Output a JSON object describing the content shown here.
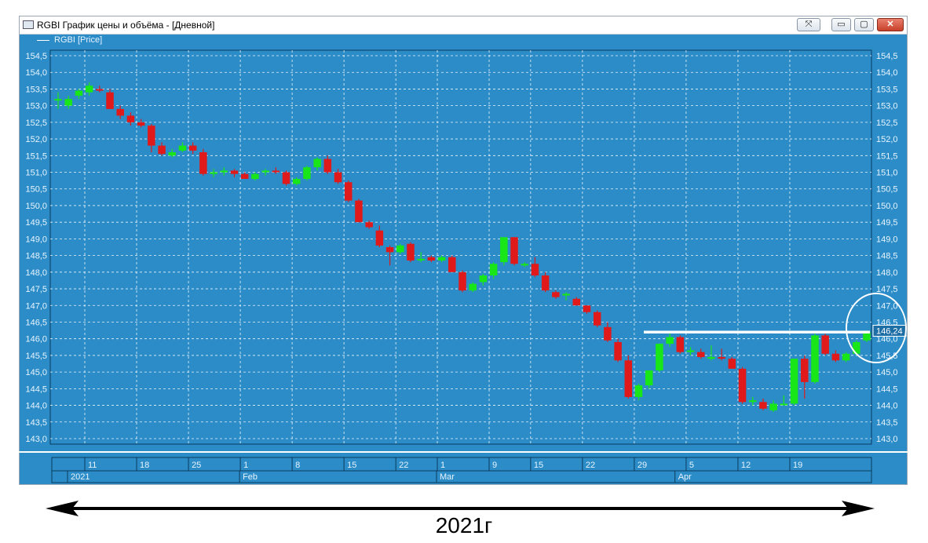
{
  "window": {
    "title": "RGBI График цены и объёма - [Дневной]",
    "legend": "RGBI [Price]",
    "buttons": {
      "pin": "⤧",
      "minimize": "▭",
      "maximize": "▢",
      "close": "✕"
    }
  },
  "colors": {
    "background": "#2b8cc8",
    "up": "#19e619",
    "down": "#e01a1a",
    "grid": "#ffffff",
    "text": "#e8f4ff"
  },
  "chart_data": {
    "type": "candlestick",
    "title": "",
    "ylim": [
      142.9,
      154.6
    ],
    "y_ticks": [
      "154,5",
      "154,0",
      "153,5",
      "153,0",
      "152,5",
      "152,0",
      "151,5",
      "151,0",
      "150,5",
      "150,0",
      "149,5",
      "149,0",
      "148,5",
      "148,0",
      "147,5",
      "147,0",
      "146,5",
      "146,0",
      "145,5",
      "145,0",
      "144,5",
      "144,0",
      "143,5",
      "143,0"
    ],
    "x_ticks_days": [
      "11",
      "18",
      "25",
      "1",
      "8",
      "15",
      "22",
      "1",
      "9",
      "15",
      "22",
      "29",
      "5",
      "12",
      "19"
    ],
    "x_ticks_months": [
      "2021",
      "Feb",
      "Mar",
      "Apr"
    ],
    "last_price_label": "146,24",
    "reference_level": 146.2,
    "series": [
      {
        "date": "2021-01-05",
        "o": 153.2,
        "h": 153.4,
        "l": 152.9,
        "c": 153.2
      },
      {
        "date": "2021-01-06",
        "o": 153.0,
        "h": 153.3,
        "l": 152.9,
        "c": 153.2
      },
      {
        "date": "2021-01-08",
        "o": 153.3,
        "h": 153.5,
        "l": 153.2,
        "c": 153.45
      },
      {
        "date": "2021-01-11",
        "o": 153.4,
        "h": 153.7,
        "l": 153.3,
        "c": 153.6
      },
      {
        "date": "2021-01-12",
        "o": 153.5,
        "h": 153.6,
        "l": 153.4,
        "c": 153.45
      },
      {
        "date": "2021-01-13",
        "o": 153.4,
        "h": 153.5,
        "l": 152.9,
        "c": 152.9
      },
      {
        "date": "2021-01-14",
        "o": 152.9,
        "h": 153.0,
        "l": 152.6,
        "c": 152.7
      },
      {
        "date": "2021-01-15",
        "o": 152.7,
        "h": 152.8,
        "l": 152.4,
        "c": 152.5
      },
      {
        "date": "2021-01-18",
        "o": 152.5,
        "h": 152.6,
        "l": 152.35,
        "c": 152.4
      },
      {
        "date": "2021-01-19",
        "o": 152.4,
        "h": 152.45,
        "l": 151.6,
        "c": 151.8
      },
      {
        "date": "2021-01-20",
        "o": 151.8,
        "h": 151.9,
        "l": 151.5,
        "c": 151.55
      },
      {
        "date": "2021-01-21",
        "o": 151.5,
        "h": 151.7,
        "l": 151.45,
        "c": 151.6
      },
      {
        "date": "2021-01-22",
        "o": 151.65,
        "h": 151.9,
        "l": 151.6,
        "c": 151.8
      },
      {
        "date": "2021-01-25",
        "o": 151.8,
        "h": 151.9,
        "l": 151.55,
        "c": 151.65
      },
      {
        "date": "2021-01-26",
        "o": 151.6,
        "h": 151.7,
        "l": 150.9,
        "c": 150.95
      },
      {
        "date": "2021-01-27",
        "o": 150.95,
        "h": 151.1,
        "l": 150.85,
        "c": 151.0
      },
      {
        "date": "2021-01-28",
        "o": 151.0,
        "h": 151.15,
        "l": 150.9,
        "c": 151.05
      },
      {
        "date": "2021-01-29",
        "o": 151.05,
        "h": 151.1,
        "l": 150.85,
        "c": 150.95
      },
      {
        "date": "2021-02-01",
        "o": 150.95,
        "h": 151.0,
        "l": 150.8,
        "c": 150.8
      },
      {
        "date": "2021-02-02",
        "o": 150.8,
        "h": 151.0,
        "l": 150.75,
        "c": 150.95
      },
      {
        "date": "2021-02-03",
        "o": 151.0,
        "h": 151.1,
        "l": 150.9,
        "c": 151.05
      },
      {
        "date": "2021-02-04",
        "o": 151.05,
        "h": 151.15,
        "l": 150.95,
        "c": 151.0
      },
      {
        "date": "2021-02-05",
        "o": 151.0,
        "h": 151.05,
        "l": 150.6,
        "c": 150.65
      },
      {
        "date": "2021-02-08",
        "o": 150.65,
        "h": 150.85,
        "l": 150.6,
        "c": 150.8
      },
      {
        "date": "2021-02-09",
        "o": 150.8,
        "h": 151.2,
        "l": 150.75,
        "c": 151.15
      },
      {
        "date": "2021-02-10",
        "o": 151.15,
        "h": 151.45,
        "l": 151.05,
        "c": 151.4
      },
      {
        "date": "2021-02-11",
        "o": 151.4,
        "h": 151.5,
        "l": 150.95,
        "c": 151.0
      },
      {
        "date": "2021-02-12",
        "o": 151.0,
        "h": 151.1,
        "l": 150.65,
        "c": 150.7
      },
      {
        "date": "2021-02-15",
        "o": 150.7,
        "h": 150.75,
        "l": 150.1,
        "c": 150.15
      },
      {
        "date": "2021-02-16",
        "o": 150.15,
        "h": 150.2,
        "l": 149.5,
        "c": 149.5
      },
      {
        "date": "2021-02-17",
        "o": 149.5,
        "h": 149.55,
        "l": 149.3,
        "c": 149.35
      },
      {
        "date": "2021-02-18",
        "o": 149.25,
        "h": 149.4,
        "l": 148.75,
        "c": 148.8
      },
      {
        "date": "2021-02-19",
        "o": 148.75,
        "h": 148.8,
        "l": 148.2,
        "c": 148.6
      },
      {
        "date": "2021-02-22",
        "o": 148.6,
        "h": 148.85,
        "l": 148.55,
        "c": 148.8
      },
      {
        "date": "2021-02-24",
        "o": 148.85,
        "h": 148.9,
        "l": 148.3,
        "c": 148.35
      },
      {
        "date": "2021-02-25",
        "o": 148.4,
        "h": 148.6,
        "l": 148.3,
        "c": 148.4
      },
      {
        "date": "2021-02-26",
        "o": 148.45,
        "h": 148.5,
        "l": 148.3,
        "c": 148.35
      },
      {
        "date": "2021-03-01",
        "o": 148.35,
        "h": 148.5,
        "l": 148.3,
        "c": 148.45
      },
      {
        "date": "2021-03-02",
        "o": 148.45,
        "h": 148.5,
        "l": 148.0,
        "c": 148.0
      },
      {
        "date": "2021-03-03",
        "o": 148.0,
        "h": 148.05,
        "l": 147.4,
        "c": 147.45
      },
      {
        "date": "2021-03-04",
        "o": 147.45,
        "h": 147.7,
        "l": 147.4,
        "c": 147.65
      },
      {
        "date": "2021-03-05",
        "o": 147.7,
        "h": 147.95,
        "l": 147.6,
        "c": 147.9
      },
      {
        "date": "2021-03-09",
        "o": 147.9,
        "h": 148.3,
        "l": 147.8,
        "c": 148.25
      },
      {
        "date": "2021-03-10",
        "o": 148.3,
        "h": 149.05,
        "l": 148.2,
        "c": 149.05
      },
      {
        "date": "2021-03-11",
        "o": 149.05,
        "h": 149.05,
        "l": 148.2,
        "c": 148.25
      },
      {
        "date": "2021-03-12",
        "o": 148.2,
        "h": 148.3,
        "l": 148.15,
        "c": 148.25
      },
      {
        "date": "2021-03-15",
        "o": 148.25,
        "h": 148.45,
        "l": 147.85,
        "c": 147.9
      },
      {
        "date": "2021-03-16",
        "o": 147.9,
        "h": 148.0,
        "l": 147.4,
        "c": 147.45
      },
      {
        "date": "2021-03-17",
        "o": 147.4,
        "h": 147.45,
        "l": 147.2,
        "c": 147.25
      },
      {
        "date": "2021-03-18",
        "o": 147.3,
        "h": 147.4,
        "l": 147.15,
        "c": 147.35
      },
      {
        "date": "2021-03-19",
        "o": 147.2,
        "h": 147.25,
        "l": 147.0,
        "c": 147.0
      },
      {
        "date": "2021-03-22",
        "o": 147.0,
        "h": 147.0,
        "l": 146.75,
        "c": 146.8
      },
      {
        "date": "2021-03-23",
        "o": 146.8,
        "h": 146.85,
        "l": 146.35,
        "c": 146.4
      },
      {
        "date": "2021-03-24",
        "o": 146.35,
        "h": 146.5,
        "l": 145.9,
        "c": 145.95
      },
      {
        "date": "2021-03-25",
        "o": 145.9,
        "h": 146.0,
        "l": 145.3,
        "c": 145.35
      },
      {
        "date": "2021-03-26",
        "o": 145.35,
        "h": 145.5,
        "l": 144.2,
        "c": 144.25
      },
      {
        "date": "2021-03-29",
        "o": 144.25,
        "h": 144.65,
        "l": 144.15,
        "c": 144.6
      },
      {
        "date": "2021-03-30",
        "o": 144.6,
        "h": 145.05,
        "l": 144.5,
        "c": 145.05
      },
      {
        "date": "2021-03-31",
        "o": 145.05,
        "h": 145.85,
        "l": 145.0,
        "c": 145.85
      },
      {
        "date": "2021-04-01",
        "o": 145.85,
        "h": 146.2,
        "l": 145.75,
        "c": 146.05
      },
      {
        "date": "2021-04-02",
        "o": 146.05,
        "h": 146.1,
        "l": 145.55,
        "c": 145.6
      },
      {
        "date": "2021-04-05",
        "o": 145.6,
        "h": 145.75,
        "l": 145.5,
        "c": 145.65
      },
      {
        "date": "2021-04-06",
        "o": 145.6,
        "h": 145.7,
        "l": 145.4,
        "c": 145.45
      },
      {
        "date": "2021-04-07",
        "o": 145.4,
        "h": 145.8,
        "l": 145.35,
        "c": 145.45
      },
      {
        "date": "2021-04-08",
        "o": 145.45,
        "h": 145.7,
        "l": 145.35,
        "c": 145.4
      },
      {
        "date": "2021-04-09",
        "o": 145.4,
        "h": 145.45,
        "l": 145.1,
        "c": 145.1
      },
      {
        "date": "2021-04-12",
        "o": 145.1,
        "h": 145.15,
        "l": 144.05,
        "c": 144.1
      },
      {
        "date": "2021-04-13",
        "o": 144.1,
        "h": 144.25,
        "l": 144.0,
        "c": 144.15
      },
      {
        "date": "2021-04-14",
        "o": 144.1,
        "h": 144.2,
        "l": 143.85,
        "c": 143.9
      },
      {
        "date": "2021-04-15",
        "o": 143.85,
        "h": 144.15,
        "l": 143.8,
        "c": 144.05
      },
      {
        "date": "2021-04-16",
        "o": 144.05,
        "h": 144.3,
        "l": 144.0,
        "c": 144.05
      },
      {
        "date": "2021-04-19",
        "o": 144.05,
        "h": 145.4,
        "l": 144.0,
        "c": 145.4
      },
      {
        "date": "2021-04-20",
        "o": 145.4,
        "h": 145.5,
        "l": 144.2,
        "c": 144.7
      },
      {
        "date": "2021-04-21",
        "o": 144.7,
        "h": 146.15,
        "l": 144.65,
        "c": 146.1
      },
      {
        "date": "2021-04-22",
        "o": 146.1,
        "h": 146.15,
        "l": 145.5,
        "c": 145.55
      },
      {
        "date": "2021-04-23",
        "o": 145.55,
        "h": 145.65,
        "l": 145.3,
        "c": 145.35
      },
      {
        "date": "2021-04-26",
        "o": 145.35,
        "h": 145.6,
        "l": 145.3,
        "c": 145.55
      },
      {
        "date": "2021-04-27",
        "o": 145.55,
        "h": 145.95,
        "l": 145.5,
        "c": 145.9
      },
      {
        "date": "2021-04-28",
        "o": 145.95,
        "h": 146.25,
        "l": 145.9,
        "c": 146.2
      }
    ]
  },
  "footer": {
    "year_label": "2021г"
  }
}
